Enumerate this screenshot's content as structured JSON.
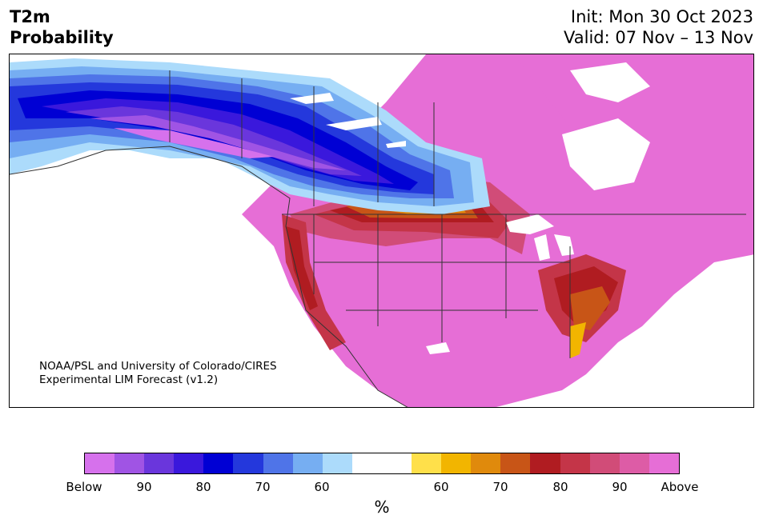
{
  "title": {
    "variable": "T2m",
    "kind": "Probability",
    "init": "Init: Mon 30 Oct 2023",
    "valid": "Valid: 07 Nov – 13 Nov"
  },
  "credit": {
    "line1": "NOAA/PSL and University of Colorado/CIRES",
    "line2": "Experimental LIM Forecast (v1.2)"
  },
  "colorbar": {
    "colors": [
      "#d671ec",
      "#a054e4",
      "#6a36dc",
      "#3a18dc",
      "#0000d4",
      "#2438dc",
      "#4f74e8",
      "#76aef2",
      "#acdbfb",
      "#ffffff",
      "#ffffff",
      "#ffe04a",
      "#f2b500",
      "#e08a0c",
      "#c85517",
      "#b01c21",
      "#c43548",
      "#d14c78",
      "#dd5ca6",
      "#e66ed6"
    ],
    "ticks": [
      "Below",
      "90",
      "80",
      "70",
      "60",
      "60",
      "70",
      "80",
      "90",
      "Above"
    ],
    "unit": "%"
  },
  "regions": {
    "cold_core": "below-normal probability over Alaska and western/central Canada",
    "warm": "above-normal probability over contiguous US, eastern Canada and Mexico"
  }
}
